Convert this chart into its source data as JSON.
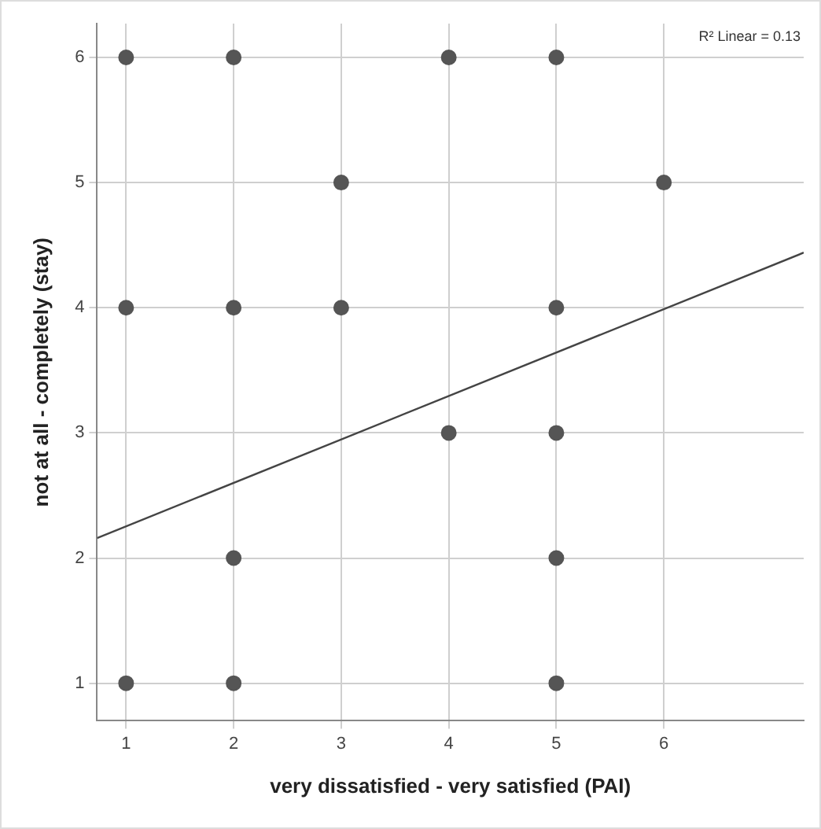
{
  "chart_data": {
    "type": "scatter",
    "xlabel": "very dissatisfied - very satisfied (PAI)",
    "ylabel": "not at all - completely (stay)",
    "annotations": [
      "R² Linear = 0.13"
    ],
    "xlim": [
      0.73,
      7.3
    ],
    "xticks": [
      1,
      2,
      3,
      4,
      5,
      6
    ],
    "ylim": [
      0.7,
      6.27
    ],
    "yticks": [
      1,
      2,
      3,
      4,
      5,
      6
    ],
    "grid": true,
    "legend": false,
    "marker": "circle",
    "series": [
      {
        "color": "#555555",
        "x": [
          1,
          2,
          4,
          5,
          3,
          6,
          1,
          2,
          3,
          5,
          4,
          5,
          2,
          5,
          1,
          2,
          5
        ],
        "values": [
          6,
          6,
          6,
          6,
          5,
          5,
          4,
          4,
          4,
          4,
          3,
          3,
          2,
          2,
          1,
          1,
          1
        ]
      },
      {
        "type": "line",
        "color": "#444444",
        "x": [
          0.73,
          7.3
        ],
        "values": [
          2.16,
          4.44
        ],
        "marker": "none",
        "line_style": "solid"
      }
    ]
  }
}
